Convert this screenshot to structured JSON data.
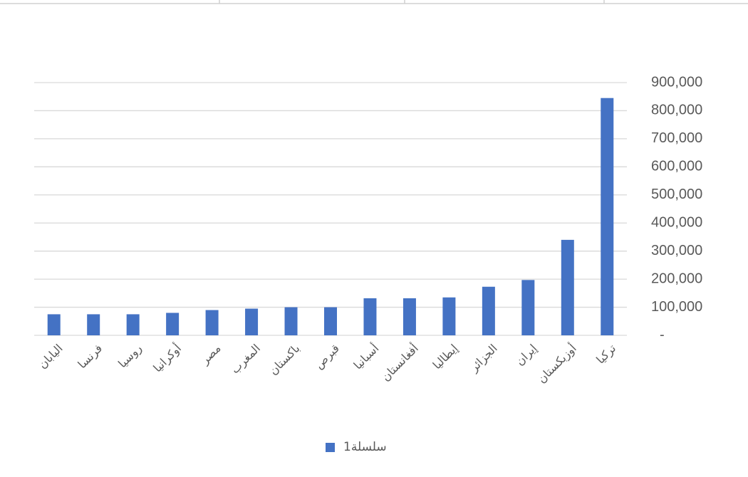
{
  "chart_data": {
    "type": "bar",
    "categories": [
      "اليابان",
      "فرنسا",
      "روسيا",
      "أوكرانيا",
      "مصر",
      "المغرب",
      "باكستان",
      "قبرص",
      "أسبانيا",
      "أفغانستان",
      "إيطاليا",
      "الجزائر",
      "إيران",
      "أوزبكستان",
      "تركيا"
    ],
    "series": [
      {
        "name": "سلسلة1",
        "color": "#4472c4",
        "values": [
          75000,
          75000,
          75000,
          80000,
          90000,
          95000,
          100000,
          100000,
          132000,
          132000,
          135000,
          173000,
          197000,
          340000,
          845000
        ]
      }
    ],
    "ylim": [
      0,
      900000
    ],
    "yticks": [
      {
        "value": 0,
        "label": "-"
      },
      {
        "value": 100000,
        "label": "100,000"
      },
      {
        "value": 200000,
        "label": "200,000"
      },
      {
        "value": 300000,
        "label": "300,000"
      },
      {
        "value": 400000,
        "label": "400,000"
      },
      {
        "value": 500000,
        "label": "500,000"
      },
      {
        "value": 600000,
        "label": "600,000"
      },
      {
        "value": 700000,
        "label": "700,000"
      },
      {
        "value": 800000,
        "label": "800,000"
      },
      {
        "value": 900000,
        "label": "900,000"
      }
    ],
    "y_axis_side": "right",
    "grid": true,
    "legend": "bottom"
  }
}
